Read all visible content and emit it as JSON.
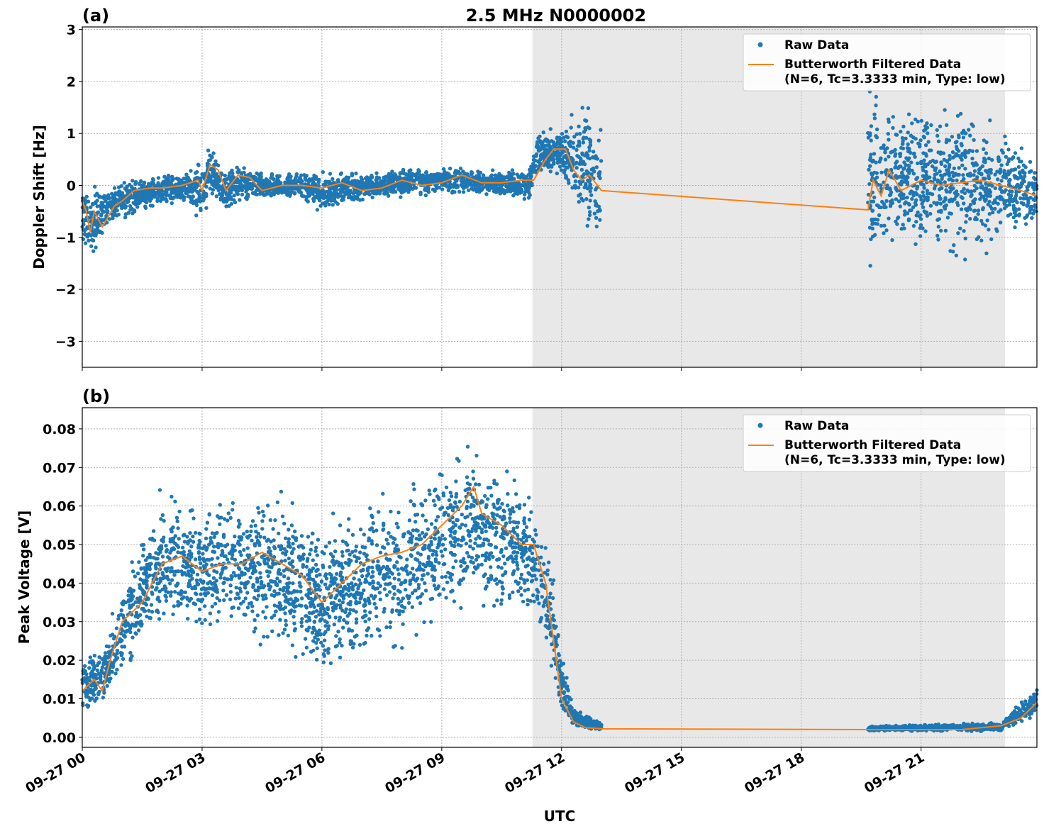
{
  "chart_data": {
    "title": "2.5 MHz N0000002",
    "xlabel": "UTC",
    "x_unit": "hours UTC on 09-27",
    "xlim": [
      0,
      23.9
    ],
    "x_ticks": [
      0,
      3,
      6,
      9,
      12,
      15,
      18,
      21
    ],
    "x_tick_labels": [
      "09-27 00",
      "09-27 03",
      "09-27 06",
      "09-27 09",
      "09-27 12",
      "09-27 15",
      "09-27 18",
      "09-27 21"
    ],
    "shaded_region": [
      11.27,
      23.1
    ],
    "shade_color": "#e8e8e8",
    "grid": true,
    "legend_placement": "top-right",
    "legend": [
      "Raw Data",
      "Butterworth Filtered Data",
      "(N=6, Tc=3.3333 min, Type: low)"
    ],
    "colors": {
      "raw": "#1f77b4",
      "filtered": "#ff7f0e"
    },
    "panels": [
      {
        "panel_label": "(a)",
        "type": "scatter+line",
        "ylabel": "Doppler Shift [Hz]",
        "ylim": [
          -3.5,
          3.05
        ],
        "y_ticks": [
          -3,
          -2,
          -1,
          0,
          1,
          2,
          3
        ],
        "y_tick_labels": [
          "−3",
          "−2",
          "−1",
          "0",
          "1",
          "2",
          "3"
        ],
        "raw_band_segments": [
          [
            [
              0,
              -1.3,
              0.1
            ],
            [
              0.3,
              -1.5,
              0.1
            ],
            [
              0.7,
              -0.9,
              0.1
            ],
            [
              1.5,
              -0.5,
              0.2
            ],
            [
              2.5,
              -0.4,
              0.3
            ],
            [
              3.0,
              -0.8,
              0.6
            ],
            [
              3.2,
              -0.3,
              0.9
            ],
            [
              3.5,
              -0.6,
              0.3
            ],
            [
              3.9,
              -0.4,
              0.5
            ],
            [
              4.5,
              -0.3,
              0.25
            ],
            [
              5.5,
              -0.3,
              0.3
            ],
            [
              6,
              -0.6,
              0.3
            ],
            [
              7,
              -0.3,
              0.25
            ],
            [
              8,
              -0.25,
              0.35
            ],
            [
              9,
              -0.2,
              0.4
            ],
            [
              10,
              -0.2,
              0.35
            ],
            [
              11.2,
              -0.3,
              0.35
            ],
            [
              11.4,
              0.2,
              1.1
            ],
            [
              12,
              0.1,
              1.2
            ],
            [
              12.3,
              -0.8,
              1.8
            ],
            [
              13.0,
              -1.5,
              1.6
            ]
          ],
          [
            [
              19.67,
              -1.8,
              2.0
            ],
            [
              20,
              -1.6,
              1.8
            ],
            [
              21,
              -1.5,
              1.8
            ],
            [
              22,
              -1.5,
              1.7
            ],
            [
              23.1,
              -1.2,
              1.2
            ],
            [
              23.9,
              -0.8,
              0.4
            ]
          ]
        ],
        "filtered": [
          [
            0,
            -0.3
          ],
          [
            0.1,
            -0.5
          ],
          [
            0.2,
            -0.9
          ],
          [
            0.3,
            -0.5
          ],
          [
            0.5,
            -0.8
          ],
          [
            0.8,
            -0.4
          ],
          [
            1,
            -0.3
          ],
          [
            1.3,
            -0.1
          ],
          [
            1.7,
            -0.05
          ],
          [
            2,
            -0.05
          ],
          [
            2.5,
            0
          ],
          [
            2.9,
            0.1
          ],
          [
            3.0,
            -0.1
          ],
          [
            3.2,
            0.4
          ],
          [
            3.4,
            0.3
          ],
          [
            3.6,
            -0.1
          ],
          [
            3.9,
            0.2
          ],
          [
            4.2,
            0.15
          ],
          [
            4.5,
            -0.1
          ],
          [
            5,
            0
          ],
          [
            5.5,
            0
          ],
          [
            6,
            -0.05
          ],
          [
            6.5,
            0.05
          ],
          [
            7,
            -0.1
          ],
          [
            7.5,
            -0.05
          ],
          [
            8,
            0.1
          ],
          [
            8.5,
            0
          ],
          [
            9,
            0.05
          ],
          [
            9.5,
            0.2
          ],
          [
            10,
            0.05
          ],
          [
            10.5,
            0.05
          ],
          [
            11,
            0.1
          ],
          [
            11.3,
            0.1
          ],
          [
            11.6,
            0.5
          ],
          [
            11.8,
            0.7
          ],
          [
            12.1,
            0.7
          ],
          [
            12.3,
            0.3
          ],
          [
            12.5,
            0.1
          ],
          [
            12.7,
            0.2
          ],
          [
            13.0,
            -0.1
          ],
          [
            19.67,
            -0.47
          ],
          [
            19.8,
            0.1
          ],
          [
            20,
            -0.2
          ],
          [
            20.2,
            0.3
          ],
          [
            20.5,
            -0.1
          ],
          [
            21,
            0.1
          ],
          [
            21.5,
            0
          ],
          [
            22,
            0.05
          ],
          [
            22.5,
            0.1
          ],
          [
            23,
            0
          ],
          [
            23.5,
            -0.1
          ],
          [
            23.9,
            -0.2
          ]
        ]
      },
      {
        "panel_label": "(b)",
        "type": "scatter+line",
        "ylabel": "Peak Voltage [V]",
        "ylim": [
          -0.0026,
          0.0855
        ],
        "y_ticks": [
          0,
          0.01,
          0.02,
          0.03,
          0.04,
          0.05,
          0.06,
          0.07,
          0.08
        ],
        "y_tick_labels": [
          "0.00",
          "0.01",
          "0.02",
          "0.03",
          "0.04",
          "0.05",
          "0.06",
          "0.07",
          "0.08"
        ],
        "raw_band_segments": [
          [
            [
              0,
              0.006,
              0.022
            ],
            [
              0.5,
              0.006,
              0.025
            ],
            [
              1,
              0.015,
              0.04
            ],
            [
              1.5,
              0.02,
              0.055
            ],
            [
              2,
              0.025,
              0.065
            ],
            [
              3,
              0.025,
              0.062
            ],
            [
              4,
              0.025,
              0.065
            ],
            [
              5,
              0.022,
              0.065
            ],
            [
              6,
              0.015,
              0.055
            ],
            [
              7,
              0.015,
              0.065
            ],
            [
              8,
              0.02,
              0.068
            ],
            [
              9,
              0.028,
              0.075
            ],
            [
              10,
              0.03,
              0.078
            ],
            [
              11,
              0.03,
              0.068
            ],
            [
              11.5,
              0.025,
              0.06
            ],
            [
              11.8,
              0.01,
              0.045
            ],
            [
              12,
              0.005,
              0.025
            ],
            [
              12.3,
              0.002,
              0.008
            ],
            [
              13,
              0.0015,
              0.004
            ]
          ],
          [
            [
              19.67,
              0.0015,
              0.003
            ],
            [
              23,
              0.0015,
              0.004
            ],
            [
              23.5,
              0.003,
              0.01
            ],
            [
              23.9,
              0.005,
              0.014
            ]
          ]
        ],
        "filtered": [
          [
            0,
            0.012
          ],
          [
            0.3,
            0.015
          ],
          [
            0.5,
            0.012
          ],
          [
            0.7,
            0.02
          ],
          [
            1,
            0.03
          ],
          [
            1.5,
            0.035
          ],
          [
            2,
            0.045
          ],
          [
            2.5,
            0.047
          ],
          [
            3,
            0.043
          ],
          [
            3.5,
            0.045
          ],
          [
            4,
            0.045
          ],
          [
            4.5,
            0.048
          ],
          [
            5,
            0.045
          ],
          [
            5.5,
            0.042
          ],
          [
            6,
            0.035
          ],
          [
            6.5,
            0.04
          ],
          [
            7,
            0.045
          ],
          [
            7.5,
            0.047
          ],
          [
            8,
            0.048
          ],
          [
            8.5,
            0.05
          ],
          [
            9,
            0.055
          ],
          [
            9.5,
            0.06
          ],
          [
            9.8,
            0.065
          ],
          [
            10,
            0.058
          ],
          [
            10.5,
            0.055
          ],
          [
            11,
            0.05
          ],
          [
            11.3,
            0.05
          ],
          [
            11.6,
            0.04
          ],
          [
            11.8,
            0.025
          ],
          [
            12,
            0.01
          ],
          [
            12.3,
            0.004
          ],
          [
            12.6,
            0.0025
          ],
          [
            13.0,
            0.0022
          ],
          [
            19.67,
            0.002
          ],
          [
            21,
            0.002
          ],
          [
            22,
            0.002
          ],
          [
            23,
            0.003
          ],
          [
            23.5,
            0.005
          ],
          [
            23.9,
            0.009
          ]
        ]
      }
    ]
  }
}
